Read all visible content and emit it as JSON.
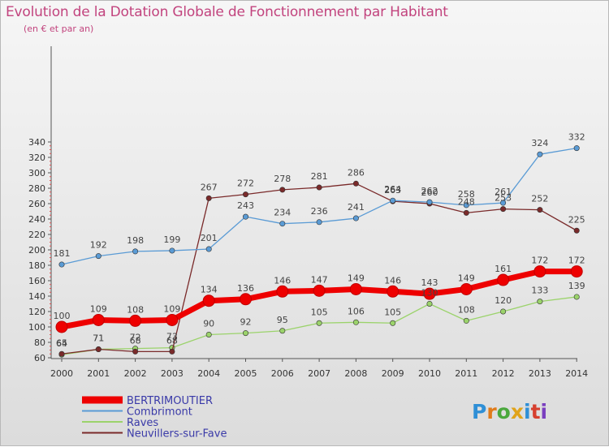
{
  "title": "Evolution de la Dotation Globale de Fonctionnement par Habitant",
  "subtitle": "(en € et par an)",
  "logo_text": "Proxiti",
  "chart_data": {
    "type": "line",
    "title": "Evolution de la Dotation Globale de Fonctionnement par Habitant",
    "subtitle": "(en € et par an)",
    "x": [
      "2000",
      "2001",
      "2002",
      "2003",
      "2004",
      "2005",
      "2006",
      "2007",
      "2008",
      "2009",
      "2010",
      "2011",
      "2012",
      "2013",
      "2014"
    ],
    "ylim": [
      60,
      340
    ],
    "yticks": [
      60,
      80,
      100,
      120,
      140,
      160,
      180,
      200,
      220,
      240,
      260,
      280,
      300,
      320,
      340
    ],
    "grid": false,
    "legend": "bottom-left",
    "series": [
      {
        "name": "BERTRIMOUTIER",
        "color": "#ee0000",
        "values": [
          100,
          109,
          108,
          109,
          134,
          136,
          146,
          147,
          149,
          146,
          143,
          149,
          161,
          172,
          172
        ]
      },
      {
        "name": "Combrimont",
        "color": "#5a9bd5",
        "values": [
          181,
          192,
          198,
          199,
          201,
          243,
          234,
          236,
          241,
          264,
          262,
          258,
          261,
          324,
          332
        ]
      },
      {
        "name": "Raves",
        "color": "#9bd36b",
        "values": [
          64,
          71,
          72,
          73,
          90,
          92,
          95,
          105,
          106,
          105,
          130,
          108,
          120,
          133,
          139
        ]
      },
      {
        "name": "Neuvillers-sur-Fave",
        "color": "#7a2a2a",
        "values": [
          65,
          71,
          68,
          68,
          267,
          272,
          278,
          281,
          286,
          263,
          260,
          248,
          253,
          252,
          225
        ]
      }
    ]
  }
}
